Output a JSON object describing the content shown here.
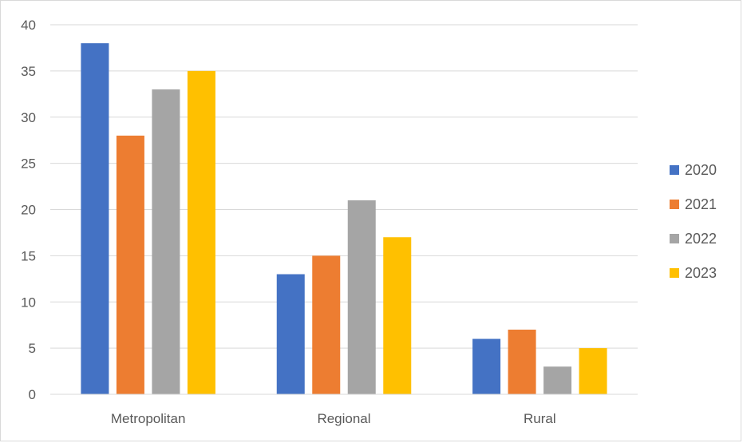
{
  "chart_data": {
    "type": "bar",
    "title": "",
    "xlabel": "",
    "ylabel": "",
    "categories": [
      "Metropolitan",
      "Regional",
      "Rural"
    ],
    "series": [
      {
        "name": "2020",
        "color": "#4472C4",
        "values": [
          38,
          13,
          6
        ]
      },
      {
        "name": "2021",
        "color": "#ED7D31",
        "values": [
          28,
          15,
          7
        ]
      },
      {
        "name": "2022",
        "color": "#A5A5A5",
        "values": [
          33,
          21,
          3
        ]
      },
      {
        "name": "2023",
        "color": "#FFC000",
        "values": [
          35,
          17,
          5
        ]
      }
    ],
    "ylim": [
      0,
      40
    ],
    "yticks": [
      0,
      5,
      10,
      15,
      20,
      25,
      30,
      35,
      40
    ],
    "grid": true,
    "legend_position": "right"
  }
}
